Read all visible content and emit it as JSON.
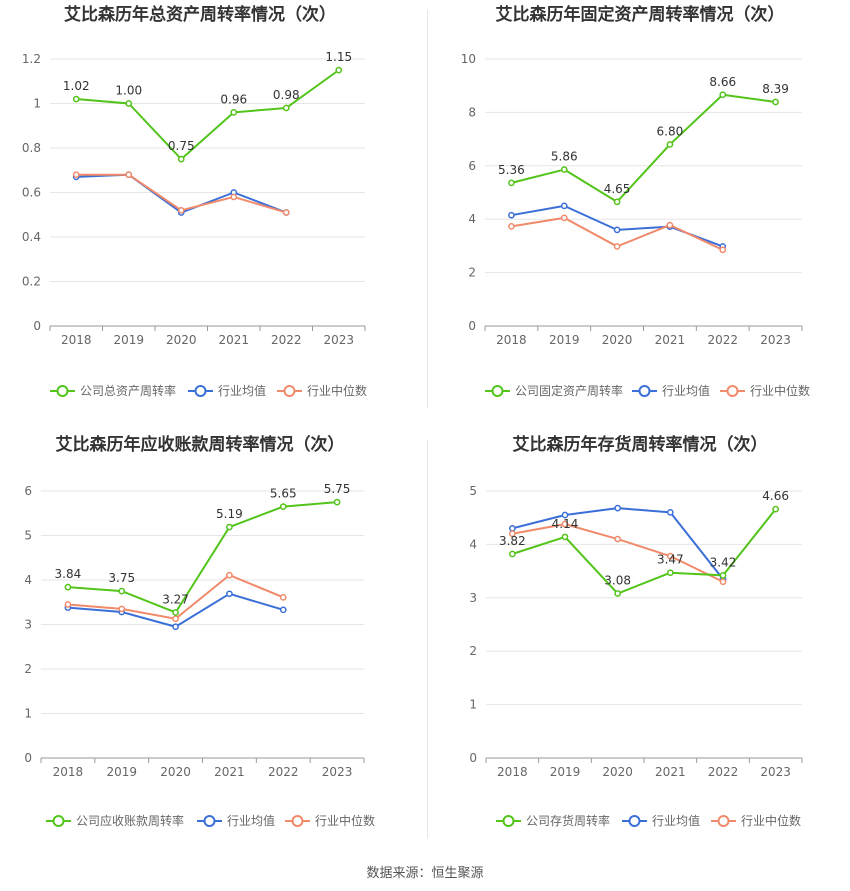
{
  "colors": {
    "company": "#52c41a",
    "avg": "#3b6fd8",
    "median": "#f08a6a",
    "grid": "#e6e6e6",
    "axis": "#999999",
    "text": "#333333",
    "label": "#666666"
  },
  "source_text": "数据来源：恒生聚源",
  "chart_data": [
    {
      "type": "line",
      "title": "艾比森历年总资产周转率情况（次）",
      "categories": [
        "2018",
        "2019",
        "2020",
        "2021",
        "2022",
        "2023"
      ],
      "ylim": [
        0,
        1.2
      ],
      "yticks": [
        "0",
        "0.2",
        "0.4",
        "0.6",
        "0.8",
        "1",
        "1.2"
      ],
      "ytick_values": [
        0,
        0.2,
        0.4,
        0.6,
        0.8,
        1,
        1.2
      ],
      "series": [
        {
          "name": "公司总资产周转率",
          "values": [
            1.02,
            1.0,
            0.75,
            0.96,
            0.98,
            1.15
          ],
          "labels": [
            "1.02",
            "1.00",
            "0.75",
            "0.96",
            "0.98",
            "1.15"
          ]
        },
        {
          "name": "行业均值",
          "values": [
            0.67,
            0.68,
            0.51,
            0.6,
            0.51,
            null
          ]
        },
        {
          "name": "行业中位数",
          "values": [
            0.68,
            0.68,
            0.52,
            0.58,
            0.51,
            null
          ]
        }
      ]
    },
    {
      "type": "line",
      "title": "艾比森历年固定资产周转率情况（次）",
      "categories": [
        "2018",
        "2019",
        "2020",
        "2021",
        "2022",
        "2023"
      ],
      "ylim": [
        0,
        10
      ],
      "yticks": [
        "0",
        "2",
        "4",
        "6",
        "8",
        "10"
      ],
      "ytick_values": [
        0,
        2,
        4,
        6,
        8,
        10
      ],
      "series": [
        {
          "name": "公司固定资产周转率",
          "values": [
            5.36,
            5.86,
            4.65,
            6.8,
            8.66,
            8.39
          ],
          "labels": [
            "5.36",
            "5.86",
            "4.65",
            "6.80",
            "8.66",
            "8.39"
          ]
        },
        {
          "name": "行业均值",
          "values": [
            4.15,
            4.5,
            3.6,
            3.72,
            2.98,
            null
          ]
        },
        {
          "name": "行业中位数",
          "values": [
            3.73,
            4.05,
            2.98,
            3.78,
            2.85,
            null
          ]
        }
      ]
    },
    {
      "type": "line",
      "title": "艾比森历年应收账款周转率情况（次）",
      "categories": [
        "2018",
        "2019",
        "2020",
        "2021",
        "2022",
        "2023"
      ],
      "ylim": [
        0,
        6
      ],
      "yticks": [
        "0",
        "1",
        "2",
        "3",
        "4",
        "5",
        "6"
      ],
      "ytick_values": [
        0,
        1,
        2,
        3,
        4,
        5,
        6
      ],
      "series": [
        {
          "name": "公司应收账款周转率",
          "values": [
            3.84,
            3.75,
            3.27,
            5.19,
            5.65,
            5.75
          ],
          "labels": [
            "3.84",
            "3.75",
            "3.27",
            "5.19",
            "5.65",
            "5.75"
          ]
        },
        {
          "name": "行业均值",
          "values": [
            3.38,
            3.28,
            2.95,
            3.69,
            3.33,
            null
          ]
        },
        {
          "name": "行业中位数",
          "values": [
            3.45,
            3.35,
            3.13,
            4.11,
            3.61,
            null
          ]
        }
      ]
    },
    {
      "type": "line",
      "title": "艾比森历年存货周转率情况（次）",
      "categories": [
        "2018",
        "2019",
        "2020",
        "2021",
        "2022",
        "2023"
      ],
      "ylim": [
        0,
        5
      ],
      "yticks": [
        "0",
        "1",
        "2",
        "3",
        "4",
        "5"
      ],
      "ytick_values": [
        0,
        1,
        2,
        3,
        4,
        5
      ],
      "series": [
        {
          "name": "公司存货周转率",
          "values": [
            3.82,
            4.14,
            3.08,
            3.47,
            3.42,
            4.66
          ],
          "labels": [
            "3.82",
            "4.14",
            "3.08",
            "3.47",
            "3.42",
            "4.66"
          ]
        },
        {
          "name": "行业均值",
          "values": [
            4.3,
            4.55,
            4.68,
            4.6,
            3.35,
            null
          ]
        },
        {
          "name": "行业中位数",
          "values": [
            4.2,
            4.38,
            4.1,
            3.78,
            3.3,
            null
          ]
        }
      ]
    }
  ]
}
